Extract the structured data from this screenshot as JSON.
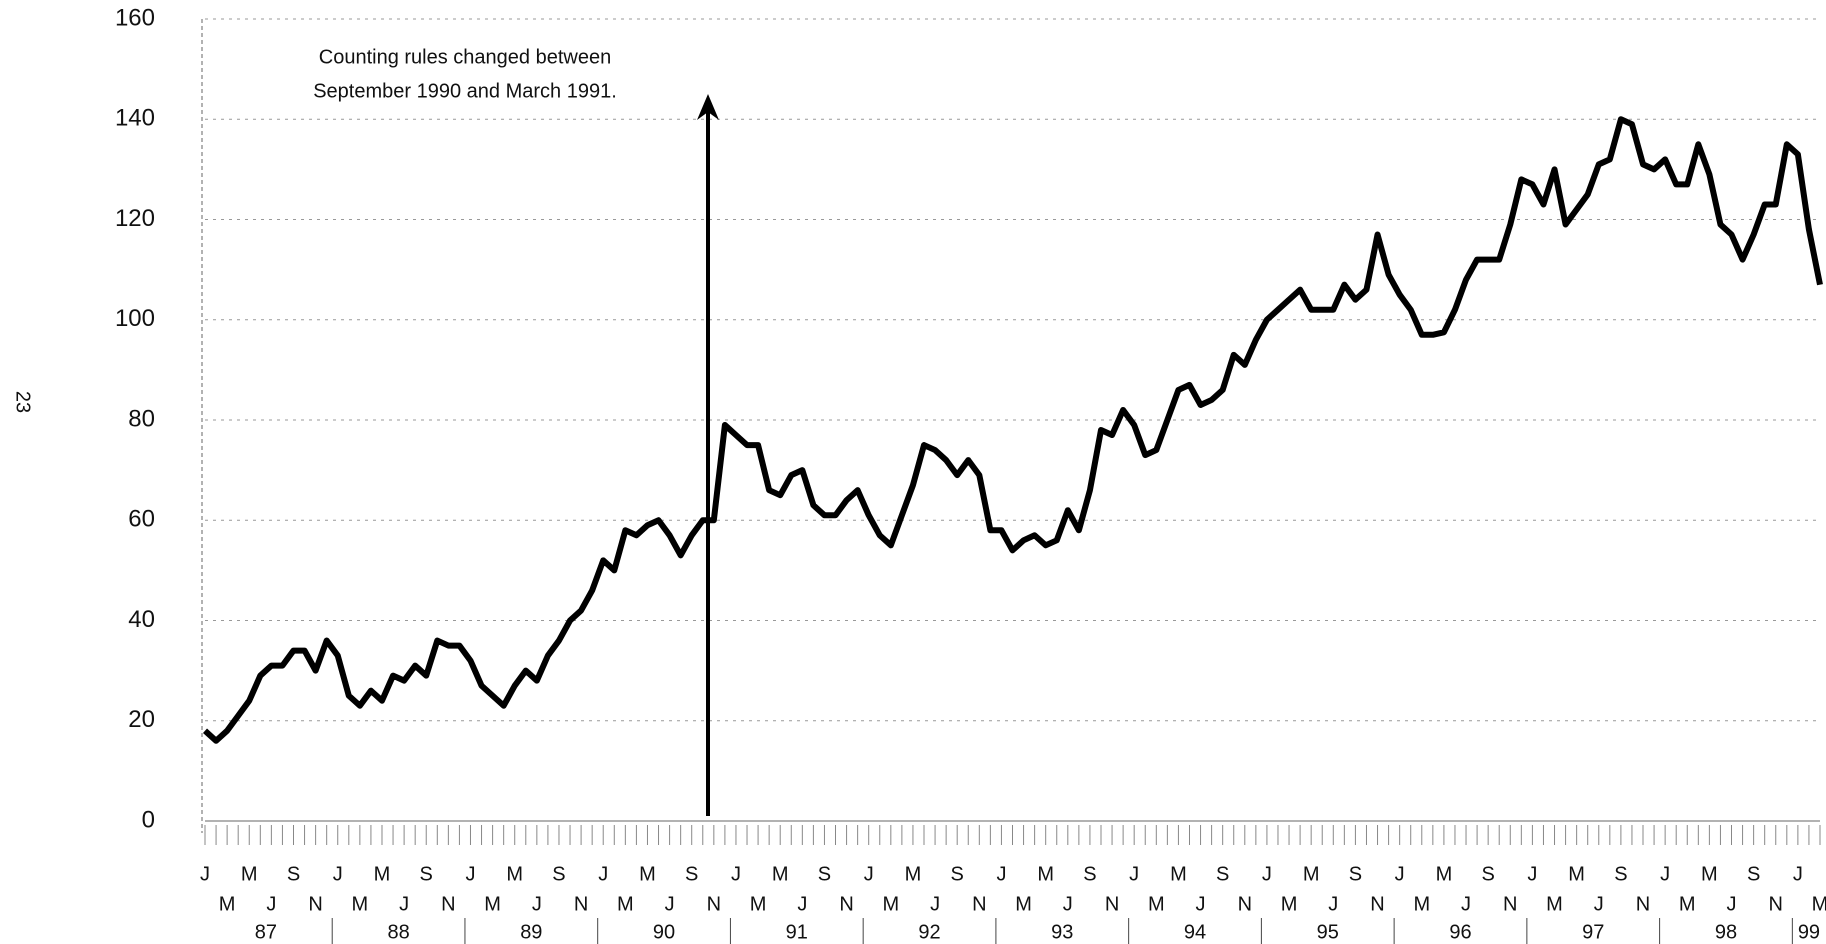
{
  "page_number": "23",
  "chart_data": {
    "type": "line",
    "annotation": [
      "Counting rules changed between",
      "September 1990 and March 1991."
    ],
    "categories": [
      "J",
      null,
      "M",
      null,
      "M",
      null,
      "J",
      null,
      "S",
      null,
      "N",
      null,
      "J",
      null,
      "M",
      null,
      "M",
      null,
      "J",
      null,
      "S",
      null,
      "N",
      null,
      "J",
      null,
      "M",
      null,
      "M",
      null,
      "J",
      null,
      "S",
      null,
      "N",
      null,
      "J",
      null,
      "M",
      null,
      "M",
      null,
      "J",
      null,
      "S",
      null,
      "N",
      null,
      "J",
      null,
      "M",
      null,
      "M",
      null,
      "J",
      null,
      "S",
      null,
      "N",
      null,
      "J",
      null,
      "M",
      null,
      "M",
      null,
      "J",
      null,
      "S",
      null,
      "N",
      null,
      "J",
      null,
      "M",
      null,
      "M",
      null,
      "J",
      null,
      "S",
      null,
      "N",
      null,
      "J",
      null,
      "M",
      null,
      "M",
      null,
      "J",
      null,
      "S",
      null,
      "N",
      null,
      "J",
      null,
      "M",
      null,
      "M",
      null,
      "J",
      null,
      "S",
      null,
      "N",
      null,
      "J",
      null,
      "M",
      null,
      "M",
      null,
      "J",
      null,
      "S",
      null,
      "N",
      null,
      "J",
      null,
      "M",
      null,
      "M",
      null,
      "J",
      null,
      "S",
      null,
      "N",
      null,
      "J",
      null,
      "M",
      null,
      "M",
      null,
      "J",
      null,
      "S",
      null,
      "N",
      null,
      "J",
      null,
      "M"
    ],
    "years": [
      "87",
      "88",
      "89",
      "90",
      "91",
      "92",
      "93",
      "94",
      "95",
      "96",
      "97",
      "98",
      "99"
    ],
    "series": [
      {
        "color": "#000000",
        "values": [
          18,
          16,
          18,
          21,
          24,
          29,
          31,
          31,
          34,
          34,
          30,
          36,
          33,
          25,
          23,
          26,
          24,
          29,
          28,
          31,
          29,
          36,
          35,
          35,
          32,
          27,
          25,
          23,
          27,
          30,
          28,
          33,
          36,
          40,
          42,
          46,
          52,
          50,
          58,
          57,
          59,
          60,
          57,
          53,
          57,
          60,
          60,
          79,
          77,
          75,
          75,
          66,
          65,
          69,
          70,
          63,
          61,
          61,
          64,
          66,
          61,
          57,
          55,
          61,
          67,
          75,
          74,
          72,
          69,
          72,
          69,
          58,
          58,
          54,
          56,
          57,
          55,
          56,
          62,
          58,
          66,
          78,
          77,
          82,
          79,
          73,
          74,
          80,
          86,
          87,
          83,
          84,
          86,
          93,
          91,
          96,
          100,
          102,
          104,
          106,
          102,
          102,
          102,
          107,
          104,
          106,
          117,
          109,
          105,
          102,
          97,
          97,
          97.5,
          102,
          108,
          112,
          112,
          112,
          119,
          128,
          127,
          123,
          130,
          119,
          122,
          125,
          131,
          132,
          140,
          139,
          131,
          130,
          132,
          127,
          127,
          135,
          129,
          119,
          117,
          112,
          117,
          123,
          123,
          135,
          133,
          118,
          107
        ]
      }
    ],
    "ylim": [
      0,
      160
    ],
    "yticks": [
      0,
      20,
      40,
      60,
      80,
      100,
      120,
      140,
      160
    ],
    "grid": true
  }
}
